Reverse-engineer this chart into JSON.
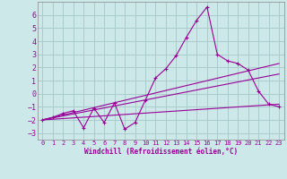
{
  "xlabel": "Windchill (Refroidissement éolien,°C)",
  "bg_color": "#cce8e8",
  "grid_color": "#aacccc",
  "line_color": "#990099",
  "xlim": [
    -0.5,
    23.5
  ],
  "ylim": [
    -3.5,
    7.0
  ],
  "yticks": [
    -3,
    -2,
    -1,
    0,
    1,
    2,
    3,
    4,
    5,
    6
  ],
  "xticks": [
    0,
    1,
    2,
    3,
    4,
    5,
    6,
    7,
    8,
    9,
    10,
    11,
    12,
    13,
    14,
    15,
    16,
    17,
    18,
    19,
    20,
    21,
    22,
    23
  ],
  "zigzag_x": [
    0,
    1,
    2,
    3,
    4,
    5,
    6,
    7,
    8,
    9,
    10,
    11,
    12,
    13,
    14,
    15,
    16,
    17,
    18,
    19,
    20,
    21,
    22,
    23
  ],
  "zigzag_y": [
    -2.0,
    -1.8,
    -1.5,
    -1.3,
    -2.6,
    -1.1,
    -2.2,
    -0.7,
    -2.7,
    -2.2,
    -0.5,
    1.2,
    1.9,
    2.9,
    4.3,
    5.6,
    6.6,
    3.0,
    2.5,
    2.3,
    1.8,
    0.2,
    -0.8,
    -1.0
  ],
  "line1_x": [
    0,
    23
  ],
  "line1_y": [
    -2.0,
    2.3
  ],
  "line2_x": [
    0,
    23
  ],
  "line2_y": [
    -2.0,
    1.5
  ],
  "line3_x": [
    0,
    23
  ],
  "line3_y": [
    -2.0,
    -0.8
  ]
}
